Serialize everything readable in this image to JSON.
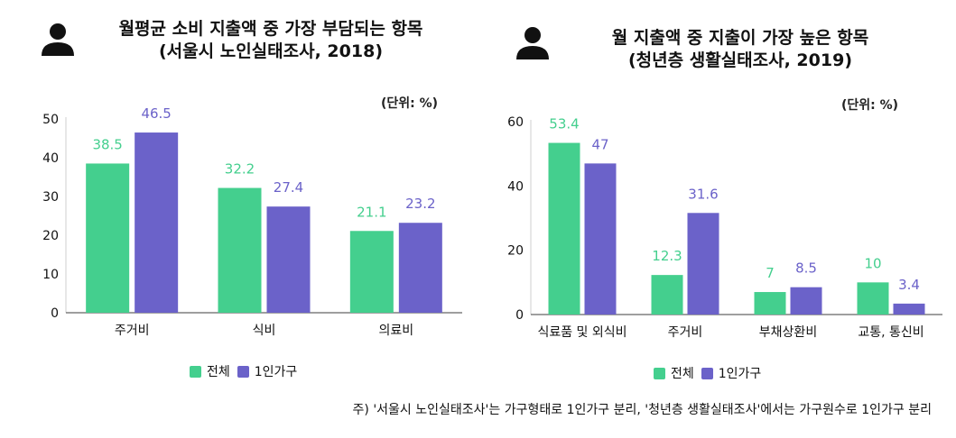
{
  "colors": {
    "series1": "#44cf8e",
    "series2": "#6b62c9"
  },
  "legend": {
    "series1": "전체",
    "series2": "1인가구"
  },
  "footnote": "주)  '서울시 노인실태조사'는 가구형태로 1인가구 분리, '청년층 생활실태조사'에서는 가구원수로 1인가구 분리",
  "charts": {
    "left": {
      "title_line1": "월평균 소비 지출액 중 가장 부담되는 항목",
      "title_line2": "(서울시 노인실태조사, 2018)",
      "unit": "(단위: %)"
    },
    "right": {
      "title_line1": "월 지출액 중 지출이 가장 높은 항목",
      "title_line2": "(청년층 생활실태조사, 2019)",
      "unit": "(단위: %)"
    }
  },
  "chart_data": [
    {
      "type": "bar",
      "title": "월평균 소비 지출액 중 가장 부담되는 항목 (서울시 노인실태조사, 2018)",
      "unit": "(단위: %)",
      "categories": [
        "주거비",
        "식비",
        "의료비"
      ],
      "series": [
        {
          "name": "전체",
          "values": [
            38.5,
            32.2,
            21.1
          ]
        },
        {
          "name": "1인가구",
          "values": [
            46.5,
            27.4,
            23.2
          ]
        }
      ],
      "value_labels": [
        [
          "38.5",
          "32.2",
          "21.1"
        ],
        [
          "46.5",
          "27.4",
          "23.2"
        ]
      ],
      "ylim": [
        0,
        50
      ],
      "yticks": [
        0,
        10,
        20,
        30,
        40,
        50
      ],
      "legend": "bottom"
    },
    {
      "type": "bar",
      "title": "월 지출액 중 지출이 가장 높은 항목 (청년층 생활실태조사, 2019)",
      "unit": "(단위: %)",
      "categories": [
        "식료품 및 외식비",
        "주거비",
        "부채상환비",
        "교통, 통신비"
      ],
      "series": [
        {
          "name": "전체",
          "values": [
            53.4,
            12.3,
            7,
            10
          ]
        },
        {
          "name": "1인가구",
          "values": [
            47,
            31.6,
            8.5,
            3.4
          ]
        }
      ],
      "value_labels": [
        [
          "53.4",
          "12.3",
          "7",
          "10"
        ],
        [
          "47",
          "31.6",
          "8.5",
          "3.4"
        ]
      ],
      "ylim": [
        0,
        60
      ],
      "yticks": [
        0,
        20,
        40,
        60
      ],
      "legend": "bottom"
    }
  ]
}
